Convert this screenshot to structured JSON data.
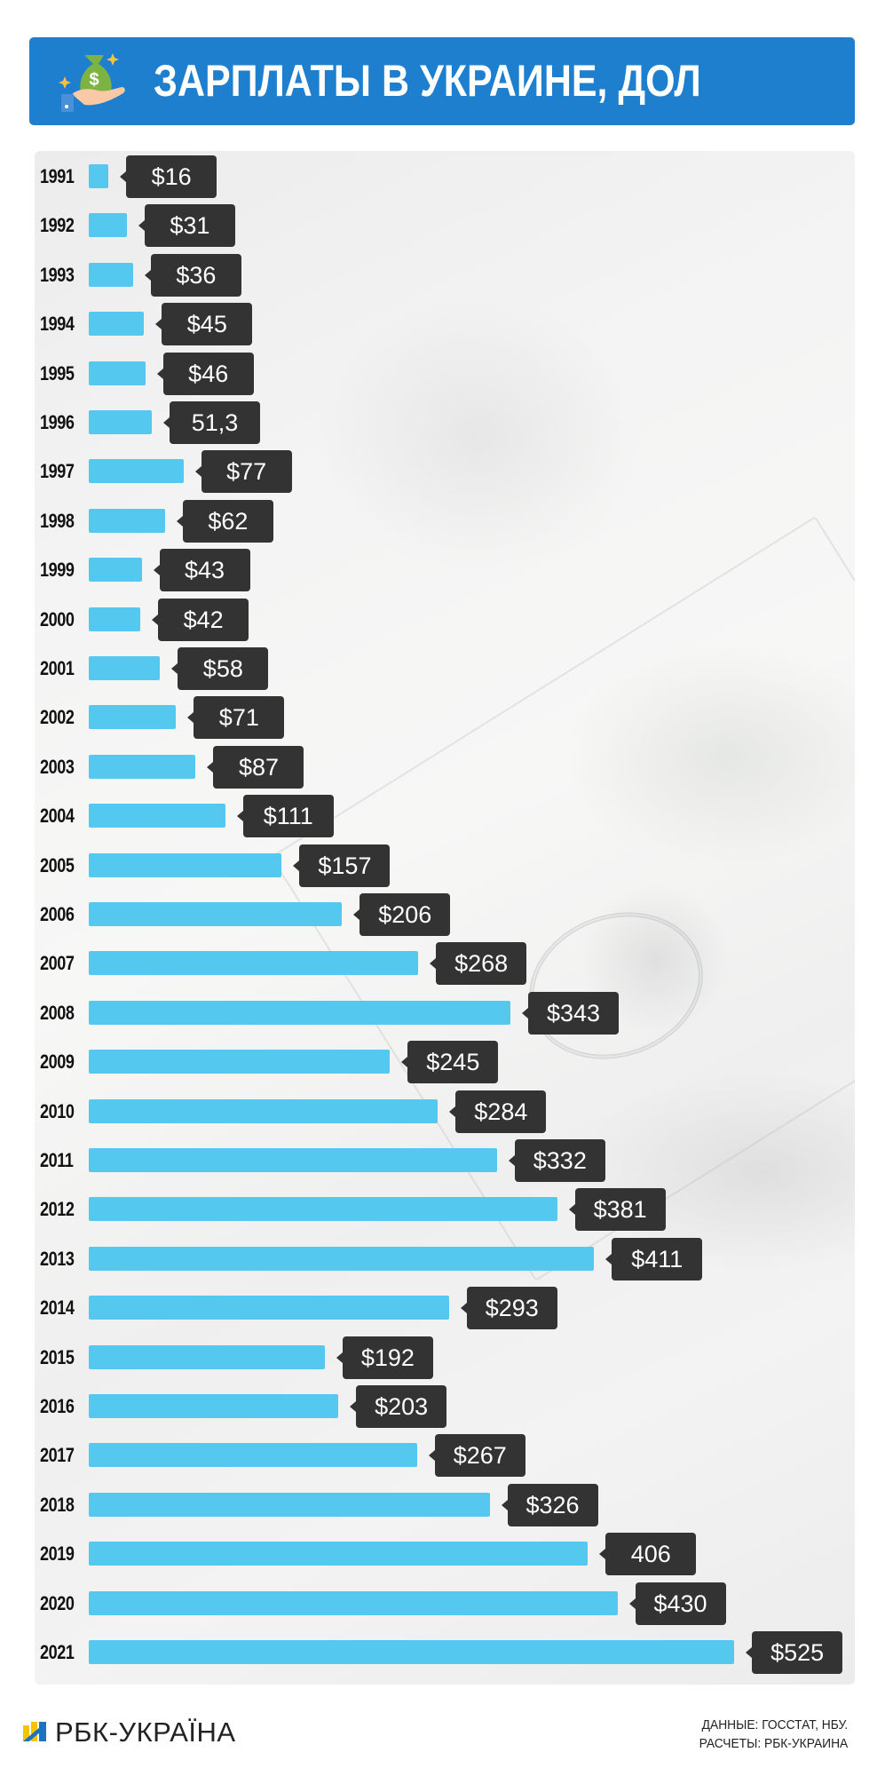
{
  "header": {
    "title": "ЗАРПЛАТЫ В УКРАИНЕ, ДОЛ",
    "icon": "money-bag-in-hand-icon",
    "background_color": "#1f7fcf"
  },
  "chart_data": {
    "type": "bar",
    "orientation": "horizontal",
    "title": "ЗАРПЛАТЫ В УКРАИНЕ, ДОЛ",
    "xlabel": "",
    "ylabel": "",
    "grid": false,
    "legend": null,
    "bar_color": "#55c8f0",
    "label_bg_color": "#333333",
    "categories": [
      "1991",
      "1992",
      "1993",
      "1994",
      "1995",
      "1996",
      "1997",
      "1998",
      "1999",
      "2000",
      "2001",
      "2002",
      "2003",
      "2004",
      "2005",
      "2006",
      "2007",
      "2008",
      "2009",
      "2010",
      "2011",
      "2012",
      "2013",
      "2014",
      "2015",
      "2016",
      "2017",
      "2018",
      "2019",
      "2020",
      "2021"
    ],
    "values": [
      16,
      31,
      36,
      45,
      46,
      51.3,
      77,
      62,
      43,
      42,
      58,
      71,
      87,
      111,
      157,
      206,
      268,
      343,
      245,
      284,
      332,
      381,
      411,
      293,
      192,
      203,
      267,
      326,
      406,
      430,
      525
    ],
    "labels": [
      "$16",
      "$31",
      "$36",
      "$45",
      "$46",
      "51,3",
      "$77",
      "$62",
      "$43",
      "$42",
      "$58",
      "$71",
      "$87",
      "$111",
      "$157",
      "$206",
      "$268",
      "$343",
      "$245",
      "$284",
      "$332",
      "$381",
      "$411",
      "$293",
      "$192",
      "$203",
      "$267",
      "$326",
      "406",
      "$430",
      "$525"
    ],
    "xlim": [
      0,
      525
    ]
  },
  "footer": {
    "logo_text": "РБК-УКРАЇНА",
    "source_line1": "ДАННЫЕ: ГОССТАТ, НБУ.",
    "source_line2": "РАСЧЕТЫ: РБК-УКРАИНА"
  }
}
